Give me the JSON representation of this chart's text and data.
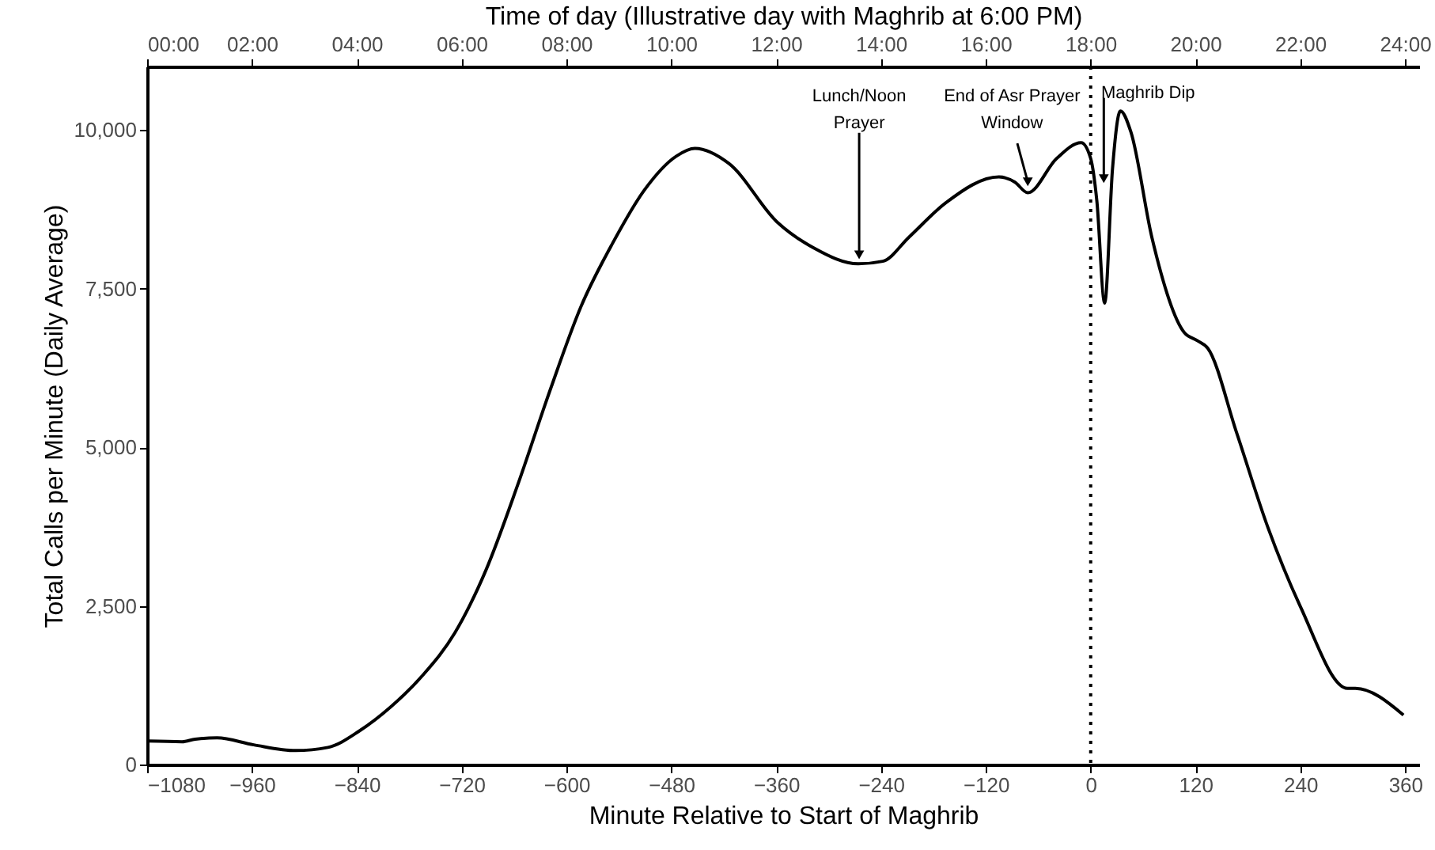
{
  "chart_data": {
    "type": "line",
    "xlabel": "Minute Relative to Start of Maghrib",
    "ylabel": "Total Calls per Minute (Daily Average)",
    "x2label": "Time of day (Illustrative day with Maghrib at 6:00 PM)",
    "x": [
      -1080,
      -1040,
      -1025,
      -1000,
      -958,
      -910,
      -873,
      -837,
      -801,
      -765,
      -728,
      -692,
      -656,
      -619,
      -583,
      -547,
      -511,
      -474,
      -453,
      -414,
      -359,
      -317,
      -266,
      -238,
      -208,
      -166,
      -105,
      -87,
      -72,
      -39,
      -11,
      0,
      7,
      16,
      25,
      34,
      46,
      70,
      107,
      122,
      134,
      167,
      203,
      240,
      294,
      303,
      358
    ],
    "series": [
      {
        "color": "#000000",
        "values": [
          370,
          360,
          400,
          420,
          310,
          220,
          270,
          530,
          910,
          1400,
          2070,
          3070,
          4400,
          5890,
          7230,
          8220,
          9050,
          9590,
          9710,
          9470,
          8550,
          8140,
          7890,
          7930,
          8310,
          8850,
          9260,
          9180,
          9010,
          9550,
          9800,
          9550,
          8890,
          7270,
          9390,
          10300,
          9970,
          8310,
          6810,
          6680,
          6560,
          5230,
          3730,
          2490,
          1200,
          1200,
          780
        ]
      }
    ],
    "xlim": [
      -1080,
      376
    ],
    "xticks": [
      -1080,
      -960,
      -840,
      -720,
      -600,
      -480,
      -360,
      -240,
      -120,
      0,
      120,
      240,
      360
    ],
    "ylim": [
      0,
      11000
    ],
    "yticks": [
      0,
      {
        "value": 2500,
        "label": "2,500"
      },
      {
        "value": 5000,
        "label": "5,000"
      },
      {
        "value": 7500,
        "label": "7,500"
      },
      {
        "value": 10000,
        "label": "10,000"
      }
    ],
    "x2lim": [
      0,
      24.27
    ],
    "x2ticks": [
      {
        "value": 0,
        "label": "00:00"
      },
      {
        "value": 2,
        "label": "02:00"
      },
      {
        "value": 4,
        "label": "04:00"
      },
      {
        "value": 6,
        "label": "06:00"
      },
      {
        "value": 8,
        "label": "08:00"
      },
      {
        "value": 10,
        "label": "10:00"
      },
      {
        "value": 12,
        "label": "12:00"
      },
      {
        "value": 14,
        "label": "14:00"
      },
      {
        "value": 16,
        "label": "16:00"
      },
      {
        "value": 18,
        "label": "18:00"
      },
      {
        "value": 20,
        "label": "20:00"
      },
      {
        "value": 22,
        "label": "22:00"
      },
      {
        "value": 24,
        "label": "24:00"
      }
    ],
    "ref_lines": [
      {
        "axis": "x",
        "value": 0,
        "color": "#000000",
        "line_style": "dotted"
      }
    ],
    "annotations": [
      {
        "text": "Lunch/Noon\nPrayer",
        "x": -265,
        "y": 7900
      },
      {
        "text": "End of Asr Prayer\nWindow",
        "x": -72,
        "y": 9050
      },
      {
        "text": "Maghrib Dip",
        "x": 15,
        "y": 9100
      }
    ],
    "grid": false,
    "marker": "none",
    "line_style": "solid"
  }
}
